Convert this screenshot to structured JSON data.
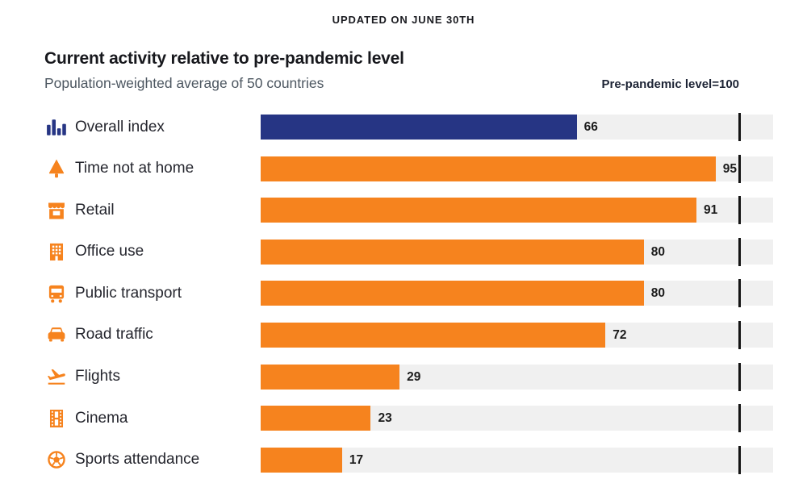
{
  "header": {
    "updated": "UPDATED ON JUNE 30TH"
  },
  "chart_data": {
    "type": "bar",
    "orientation": "horizontal",
    "title": "Current activity relative to pre-pandemic level",
    "subtitle": "Population-weighted average of 50 countries",
    "reference_line": {
      "label": "Pre-pandemic level=100",
      "value": 100
    },
    "axis_max": 107,
    "grid": false,
    "legend": false,
    "categories": [
      "Overall index",
      "Time not at home",
      "Retail",
      "Office use",
      "Public transport",
      "Road traffic",
      "Flights",
      "Cinema",
      "Sports attendance"
    ],
    "values": [
      66,
      95,
      91,
      80,
      80,
      72,
      29,
      23,
      17
    ],
    "icons": [
      "bar-chart-icon",
      "tree-icon",
      "storefront-icon",
      "office-building-icon",
      "bus-icon",
      "car-icon",
      "plane-takeoff-icon",
      "film-strip-icon",
      "soccer-ball-icon"
    ],
    "bar_colors": [
      "#263584",
      "#F6831E",
      "#F6831E",
      "#F6831E",
      "#F6831E",
      "#F6831E",
      "#F6831E",
      "#F6831E",
      "#F6831E"
    ]
  },
  "colors": {
    "navy": "#263584",
    "orange": "#F6831E",
    "track": "#F0F0F0",
    "marker_line": "#141414",
    "title_text": "#17181d",
    "subtitle_text": "#4d5761",
    "background": "#FFFFFF"
  }
}
